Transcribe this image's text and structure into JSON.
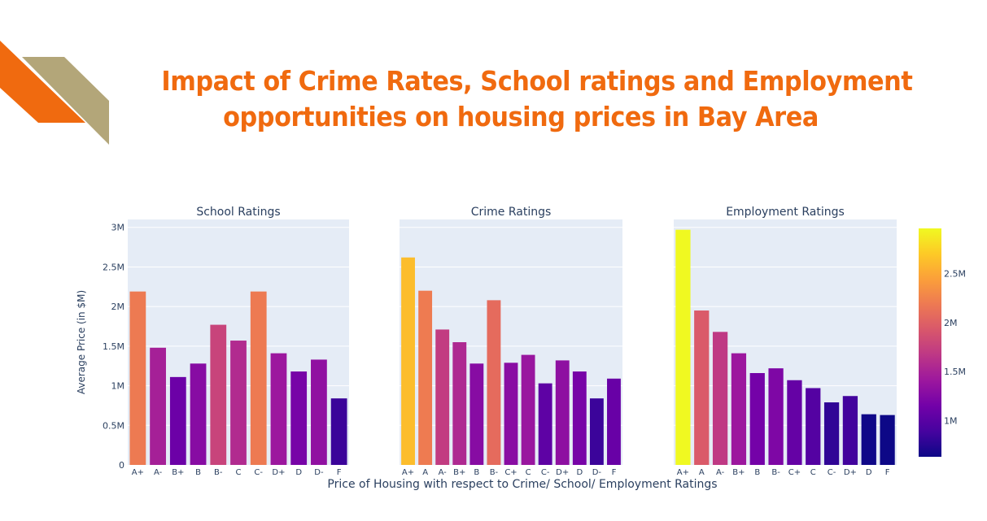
{
  "page": {
    "title_line1": "Impact of Crime Rates, School ratings and Employment",
    "title_line2": "opportunities on housing prices in Bay Area"
  },
  "colors": {
    "title": "#f06a0f",
    "plot_bg": "#e5ecf6",
    "grid": "#ffffff",
    "deco_orange": "#f06a0f",
    "deco_tan": "#b3a679",
    "colorscale_plasma": [
      "#0d0887",
      "#46039f",
      "#7201a8",
      "#9c179e",
      "#bd3786",
      "#d8576b",
      "#ed7953",
      "#fb9f3a",
      "#fdca26",
      "#f0f921"
    ]
  },
  "chart_data": {
    "type": "bar",
    "ylabel": "Average Price (in $M)",
    "xlabel": "Price of Housing with respect to Crime/ School/ Employment Ratings",
    "ylim": [
      0,
      3100000
    ],
    "yticks": [
      0,
      500000,
      1000000,
      1500000,
      2000000,
      2500000,
      3000000
    ],
    "ytick_labels": [
      "0",
      "0.5M",
      "1M",
      "1.5M",
      "2M",
      "2.5M",
      "3M"
    ],
    "grid": true,
    "colorbar": {
      "cmin": 630000,
      "cmax": 2960000,
      "ticks": [
        1000000,
        1500000,
        2000000,
        2500000
      ],
      "tick_labels": [
        "1M",
        "1.5M",
        "2M",
        "2.5M"
      ]
    },
    "subplots": [
      {
        "title": "School Ratings",
        "categories": [
          "A+",
          "A-",
          "B+",
          "B",
          "B-",
          "C",
          "C-",
          "D+",
          "D",
          "D-",
          "F"
        ],
        "values": [
          2190000,
          1480000,
          1110000,
          1280000,
          1770000,
          1570000,
          2190000,
          1410000,
          1180000,
          1330000,
          840000
        ]
      },
      {
        "title": "Crime Ratings",
        "categories": [
          "A+",
          "A",
          "A-",
          "B+",
          "B",
          "B-",
          "C+",
          "C",
          "C-",
          "D+",
          "D",
          "D-",
          "F"
        ],
        "values": [
          2620000,
          2200000,
          1710000,
          1550000,
          1280000,
          2080000,
          1290000,
          1390000,
          1030000,
          1320000,
          1180000,
          840000,
          1090000
        ]
      },
      {
        "title": "Employment Ratings",
        "categories": [
          "A+",
          "A",
          "A-",
          "B+",
          "B",
          "B-",
          "C+",
          "C",
          "C-",
          "D+",
          "D",
          "F"
        ],
        "values": [
          2970000,
          1950000,
          1680000,
          1410000,
          1160000,
          1220000,
          1070000,
          970000,
          790000,
          870000,
          640000,
          630000
        ]
      }
    ]
  }
}
